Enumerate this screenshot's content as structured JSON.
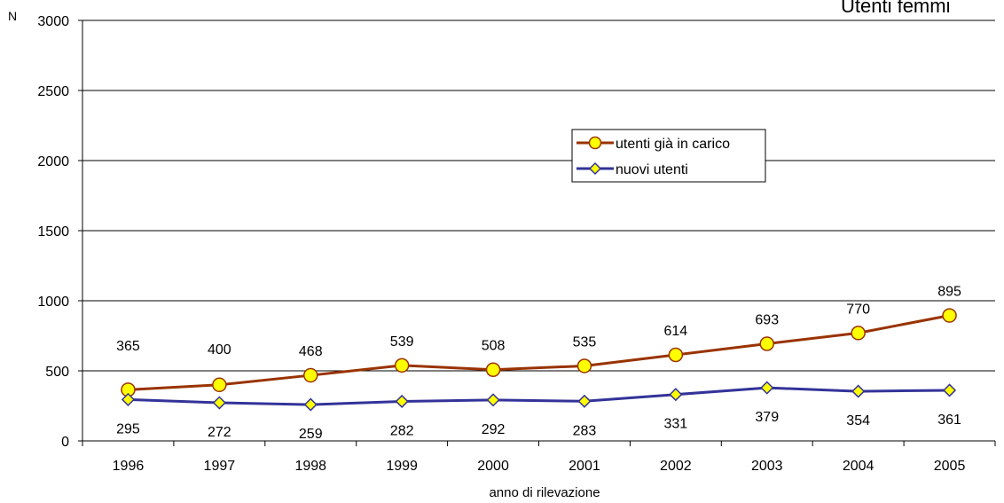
{
  "chart_data": {
    "type": "line",
    "title": "Utenti femmi",
    "xlabel": "anno di rilevazione",
    "ylabel": "N",
    "ylim": [
      0,
      3000
    ],
    "yticks": [
      "0",
      "500",
      "1000",
      "1500",
      "2000",
      "2500",
      "3000"
    ],
    "categories": [
      "1996",
      "1997",
      "1998",
      "1999",
      "2000",
      "2001",
      "2002",
      "2003",
      "2004",
      "2005"
    ],
    "grid": "horizontal",
    "legend_position": "center",
    "series": [
      {
        "name": "utenti già in carico",
        "values": [
          365,
          400,
          468,
          539,
          508,
          535,
          614,
          693,
          770,
          895
        ],
        "color": "#993300",
        "marker": "circle",
        "marker_fill": "#ffff00"
      },
      {
        "name": "nuovi utenti",
        "values": [
          295,
          272,
          259,
          282,
          292,
          283,
          331,
          379,
          354,
          361
        ],
        "color": "#333399",
        "marker": "diamond",
        "marker_fill": "#ffff00"
      }
    ]
  }
}
